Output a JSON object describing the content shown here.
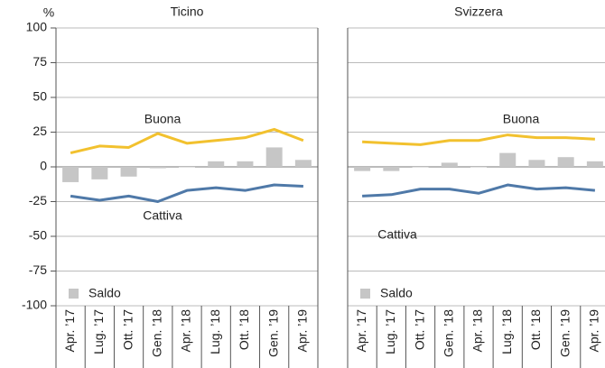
{
  "chart_data": [
    {
      "type": "line",
      "title": "Ticino",
      "y_label": "%",
      "categories": [
        "Apr. ’17",
        "Lug. ’17",
        "Ott. ’17",
        "Gen. ’18",
        "Apr. ’18",
        "Lug. ’18",
        "Ott. ’18",
        "Gen. ’19",
        "Apr. ’19"
      ],
      "series": [
        {
          "name": "Buona",
          "color": "#f2c12e",
          "values": [
            10,
            15,
            14,
            24,
            17,
            19,
            21,
            27,
            19
          ]
        },
        {
          "name": "Cattiva",
          "color": "#4f79a8",
          "values": [
            -21,
            -24,
            -21,
            -25,
            -17,
            -15,
            -17,
            -13,
            -14
          ]
        },
        {
          "name": "Saldo",
          "color": "#c6c6c6",
          "type": "bar",
          "values": [
            -11,
            -9,
            -7,
            -1,
            0,
            4,
            4,
            14,
            5
          ]
        }
      ],
      "ylim": [
        -100,
        100
      ],
      "yticks": [
        -100,
        -75,
        -50,
        -25,
        0,
        25,
        50,
        75,
        100
      ],
      "grid": true,
      "show_tick_labels": true
    },
    {
      "type": "line",
      "title": "Svizzera",
      "categories": [
        "Apr. ’17",
        "Lug. ’17",
        "Ott. ’17",
        "Gen. ’18",
        "Apr. ’18",
        "Lug. ’18",
        "Ott. ’18",
        "Gen. ’19",
        "Apr. ’19"
      ],
      "series": [
        {
          "name": "Buona",
          "color": "#f2c12e",
          "values": [
            18,
            17,
            16,
            19,
            19,
            23,
            21,
            21,
            20
          ]
        },
        {
          "name": "Cattiva",
          "color": "#4f79a8",
          "values": [
            -21,
            -20,
            -16,
            -16,
            -19,
            -13,
            -16,
            -15,
            -17
          ]
        },
        {
          "name": "Saldo",
          "color": "#c6c6c6",
          "type": "bar",
          "values": [
            -3,
            -3,
            0,
            3,
            0,
            10,
            5,
            7,
            4
          ]
        }
      ],
      "ylim": [
        -100,
        100
      ],
      "yticks": [
        -100,
        -75,
        -50,
        -25,
        0,
        25,
        50,
        75,
        100
      ],
      "grid": true,
      "show_tick_labels": false
    }
  ]
}
